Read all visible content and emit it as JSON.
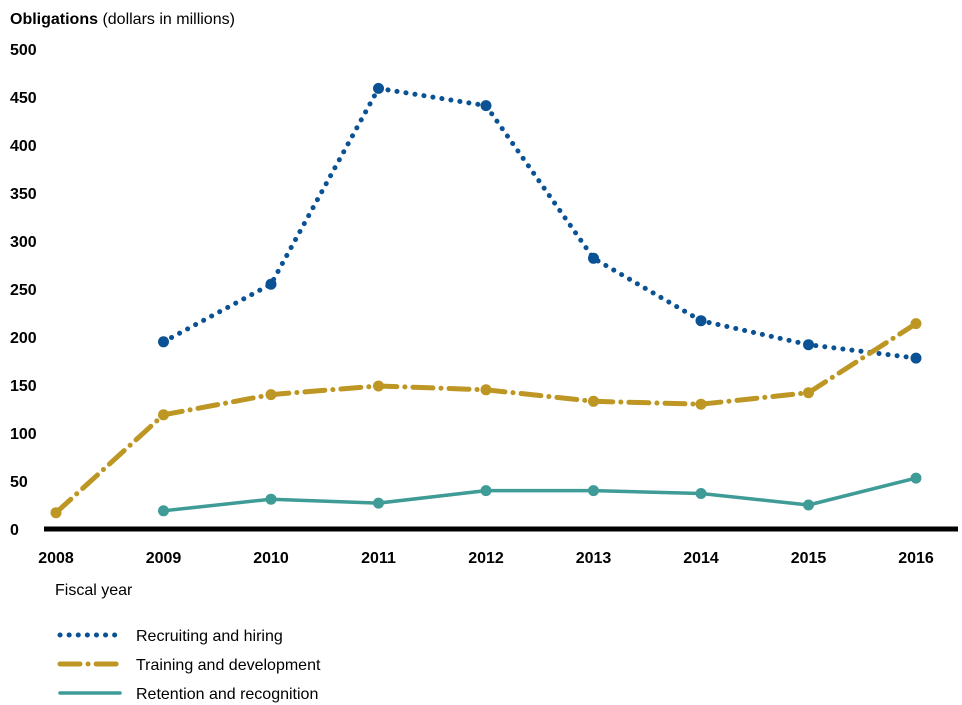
{
  "chart_data": {
    "type": "line",
    "y_title_bold": "Obligations",
    "y_title_rest": " (dollars in millions)",
    "xlabel": "Fiscal year",
    "ylim": [
      0,
      500
    ],
    "yticks": [
      0,
      50,
      100,
      150,
      200,
      250,
      300,
      350,
      400,
      450,
      500
    ],
    "categories": [
      "2008",
      "2009",
      "2010",
      "2011",
      "2012",
      "2013",
      "2014",
      "2015",
      "2016"
    ],
    "series": [
      {
        "name": "Recruiting and hiring",
        "color": "#0a5293",
        "style": "dotted",
        "values": [
          null,
          195,
          255,
          459,
          441,
          282,
          217,
          192,
          178
        ]
      },
      {
        "name": "Training and development",
        "color": "#bd9624",
        "style": "dashdot",
        "values": [
          17,
          119,
          140,
          149,
          145,
          133,
          130,
          142,
          214
        ]
      },
      {
        "name": "Retention and recognition",
        "color": "#3e9b96",
        "style": "solid",
        "values": [
          null,
          19,
          31,
          27,
          40,
          40,
          37,
          25,
          53
        ]
      }
    ],
    "grid": false,
    "legend_position": "bottom-left"
  }
}
